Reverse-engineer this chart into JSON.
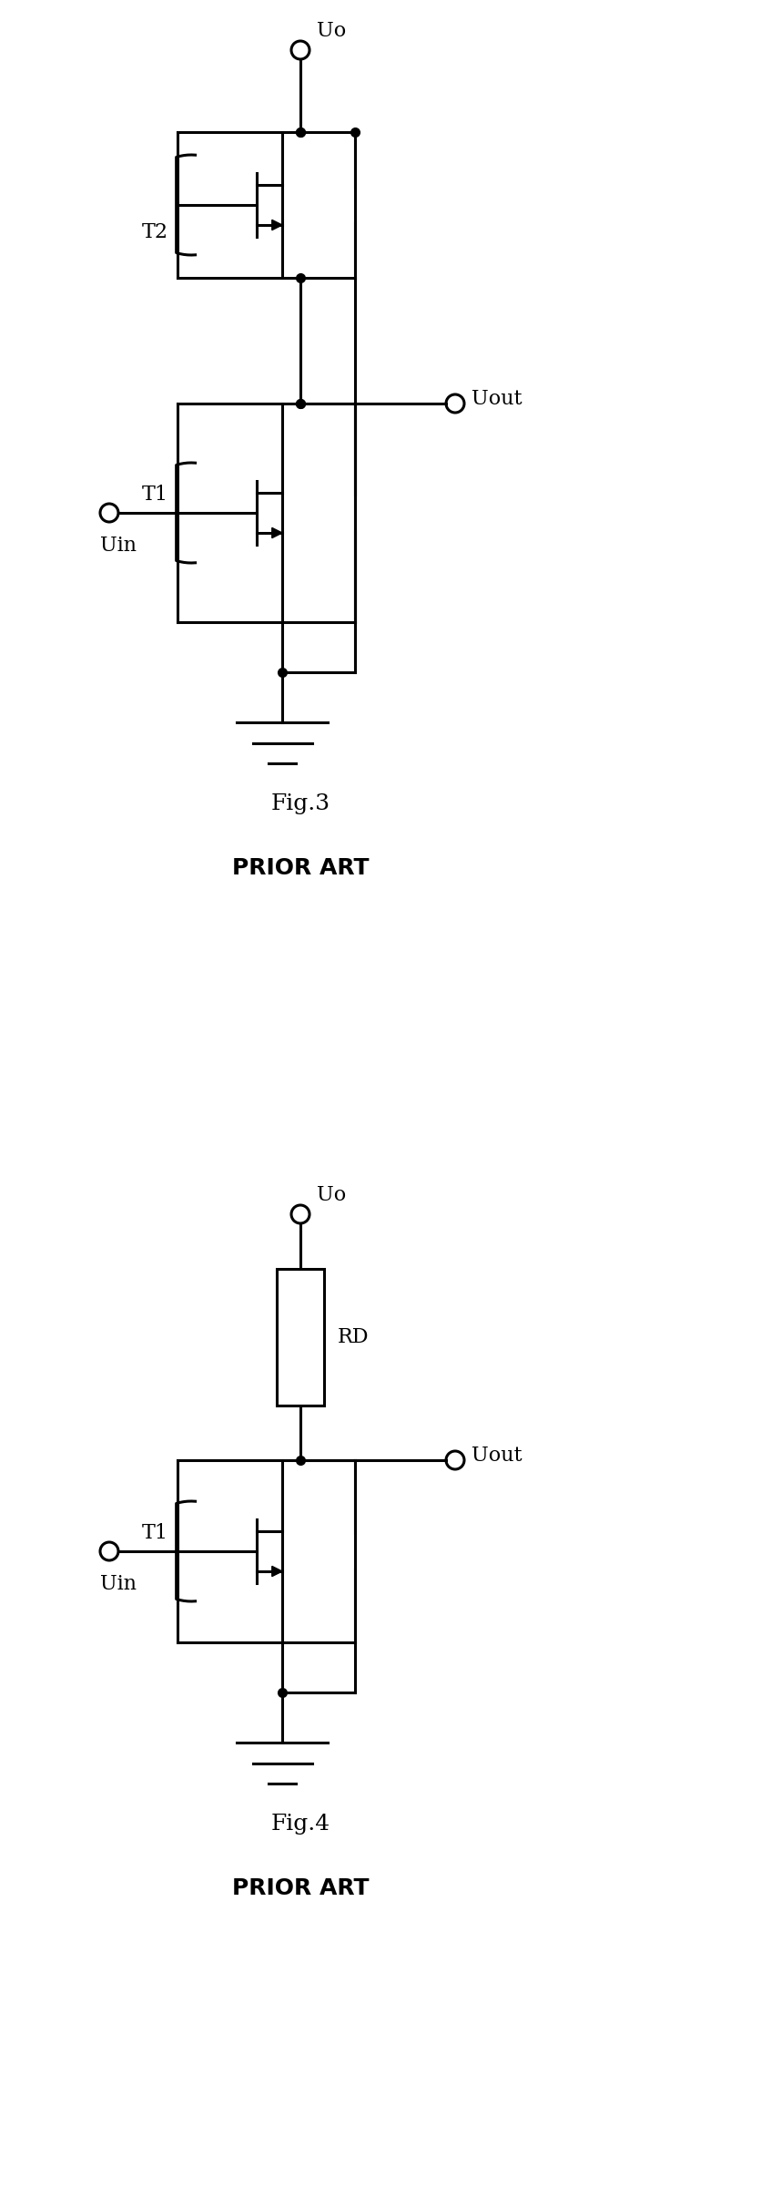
{
  "fig3_title": "Fig.3",
  "fig4_title": "Fig.4",
  "prior_art": "PRIOR ART",
  "label_Uo": "Uo",
  "label_Uout": "Uout",
  "label_Uin": "Uin",
  "label_T1": "T1",
  "label_T2": "T2",
  "label_RD": "RD",
  "line_color": "#000000",
  "bg_color": "#ffffff",
  "lw": 2.2,
  "dot_size": 7
}
